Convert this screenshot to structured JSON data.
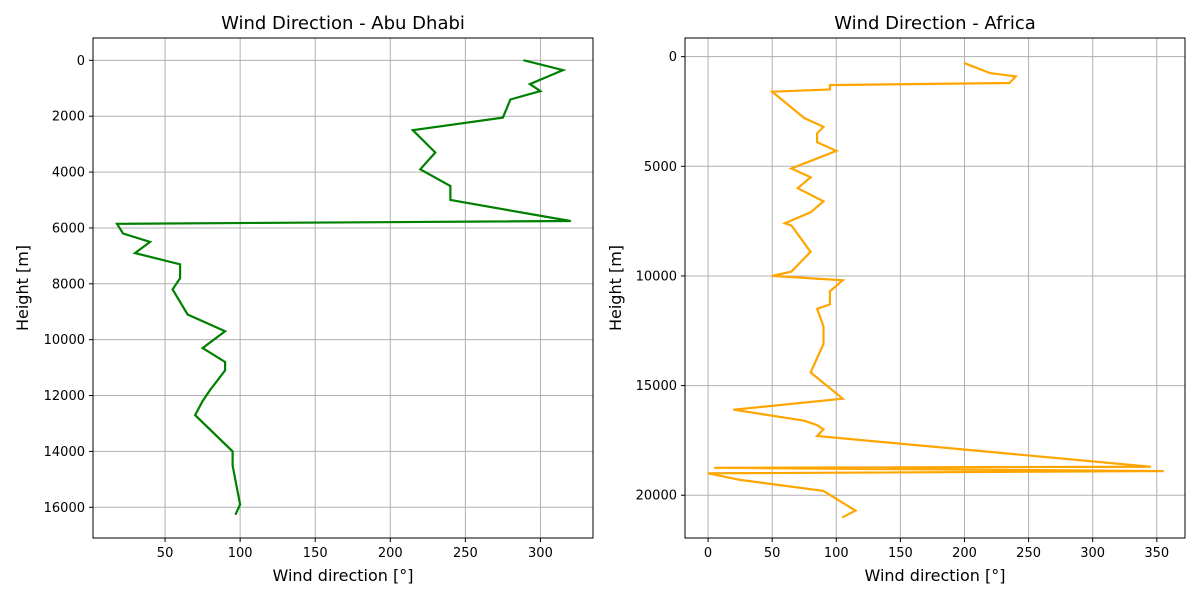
{
  "chart_data": [
    {
      "type": "line",
      "title": "Wind Direction - Abu Dhabi",
      "xlabel": "Wind direction [°]",
      "ylabel": "Height [m]",
      "xlim": [
        2,
        335
      ],
      "ylim": [
        17100,
        -800
      ],
      "y_inverted": true,
      "grid": true,
      "xticks": [
        50,
        100,
        150,
        200,
        250,
        300
      ],
      "yticks": [
        0,
        2000,
        4000,
        6000,
        8000,
        10000,
        12000,
        14000,
        16000
      ],
      "color": "#008000",
      "series": [
        {
          "x": [
            289,
            315,
            293,
            300,
            280,
            275,
            215,
            230,
            220,
            240,
            240,
            320,
            18,
            22,
            40,
            30,
            60,
            60,
            55,
            65,
            90,
            75,
            90,
            90,
            80,
            75,
            70,
            95,
            95,
            100,
            97
          ],
          "y": [
            0,
            350,
            850,
            1100,
            1400,
            2050,
            2500,
            3300,
            3900,
            4500,
            5000,
            5750,
            5850,
            6200,
            6500,
            6900,
            7300,
            7800,
            8200,
            9100,
            9700,
            10300,
            10800,
            11100,
            11800,
            12200,
            12700,
            14000,
            14500,
            15900,
            16250
          ]
        }
      ]
    },
    {
      "type": "line",
      "title": "Wind Direction - Africa",
      "xlabel": "Wind direction [°]",
      "ylabel": "Height [m]",
      "xlim": [
        -18,
        372
      ],
      "ylim": [
        21950,
        -850
      ],
      "y_inverted": true,
      "grid": true,
      "xticks": [
        0,
        50,
        100,
        150,
        200,
        250,
        300,
        350
      ],
      "yticks": [
        0,
        5000,
        10000,
        15000,
        20000
      ],
      "color": "#FFA500",
      "series": [
        {
          "x": [
            200,
            220,
            240,
            235,
            95,
            95,
            50,
            75,
            90,
            85,
            85,
            100,
            65,
            80,
            70,
            90,
            80,
            60,
            65,
            80,
            65,
            50,
            105,
            95,
            95,
            85,
            90,
            90,
            80,
            105,
            20,
            75,
            85,
            90,
            85,
            345,
            5,
            355,
            0,
            25,
            90,
            115,
            105
          ],
          "y": [
            300,
            750,
            900,
            1200,
            1300,
            1500,
            1600,
            2800,
            3200,
            3500,
            3900,
            4300,
            5100,
            5500,
            6000,
            6600,
            7100,
            7600,
            7700,
            8900,
            9800,
            10000,
            10200,
            10700,
            11300,
            11500,
            12300,
            13100,
            14400,
            15600,
            16100,
            16600,
            16800,
            17000,
            17300,
            18700,
            18750,
            18900,
            19000,
            19300,
            19800,
            20700,
            21000
          ]
        }
      ]
    }
  ]
}
